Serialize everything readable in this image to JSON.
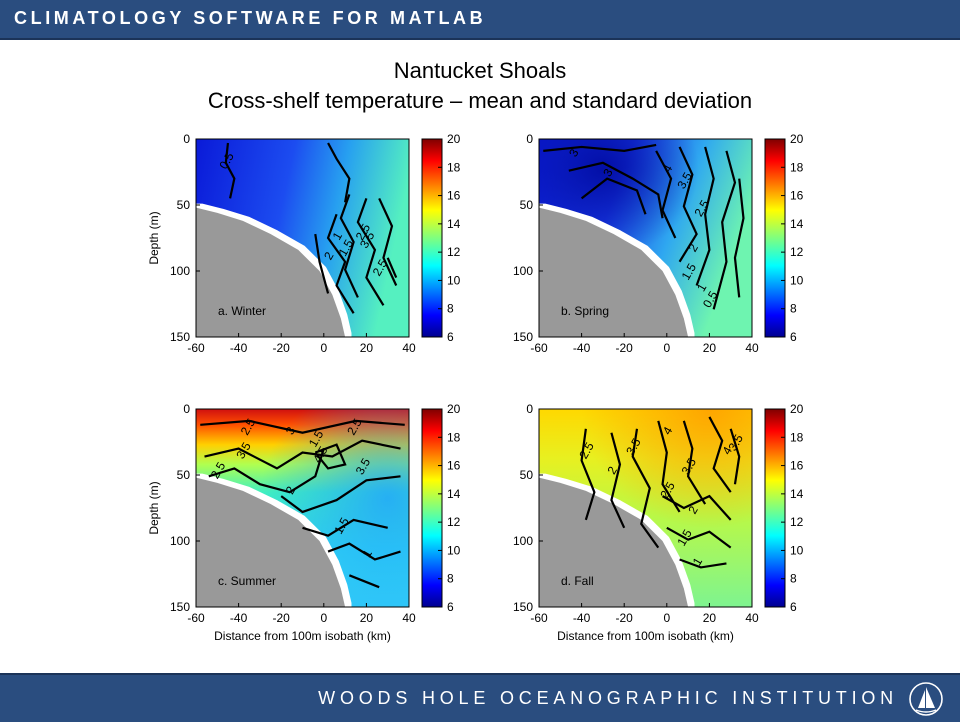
{
  "header": {
    "title": "CLIMATOLOGY SOFTWARE FOR MATLAB"
  },
  "footer": {
    "institution": "WOODS HOLE OCEANOGRAPHIC INSTITUTION",
    "logo_icon": "whoi-sail-logo-icon"
  },
  "slide": {
    "title_line1": "Nantucket Shoals",
    "title_line2": "Cross-shelf temperature – mean and standard deviation"
  },
  "colors": {
    "header_bg": "#2a4d7f",
    "land": "#999999"
  },
  "chart_data": [
    {
      "type": "heatmap",
      "panel": "a",
      "label": "a. Winter",
      "x_ticks": [
        -60,
        -40,
        -20,
        0,
        20,
        40
      ],
      "y_ticks": [
        0,
        50,
        100,
        150
      ],
      "xlim": [
        -60,
        40
      ],
      "ylim": [
        150,
        0
      ],
      "xlabel": "",
      "ylabel": "Depth (m)",
      "colorbar": {
        "ticks": [
          20,
          18,
          16,
          14,
          12,
          10,
          8,
          6
        ],
        "range": [
          6,
          20
        ]
      },
      "contour_labels": [
        "0.5",
        "1",
        "1.5",
        "2",
        "2.5",
        "3.5",
        "2.5"
      ]
    },
    {
      "type": "heatmap",
      "panel": "b",
      "label": "b. Spring",
      "x_ticks": [
        -60,
        -40,
        -20,
        0,
        20,
        40
      ],
      "y_ticks": [
        0,
        50,
        100,
        150
      ],
      "xlim": [
        -60,
        40
      ],
      "ylim": [
        150,
        0
      ],
      "xlabel": "",
      "ylabel": "",
      "colorbar": {
        "ticks": [
          20,
          18,
          16,
          14,
          12,
          10,
          8,
          6
        ],
        "range": [
          6,
          20
        ]
      },
      "contour_labels": [
        "3",
        "4",
        "3.5",
        "3",
        "2.5",
        "2",
        "1.5",
        "1",
        "0.5"
      ]
    },
    {
      "type": "heatmap",
      "panel": "c",
      "label": "c. Summer",
      "x_ticks": [
        -60,
        -40,
        -20,
        0,
        20,
        40
      ],
      "y_ticks": [
        0,
        50,
        100,
        150
      ],
      "xlim": [
        -60,
        40
      ],
      "ylim": [
        150,
        0
      ],
      "xlabel": "Distance from 100m isobath (km)",
      "ylabel": "Depth (m)",
      "colorbar": {
        "ticks": [
          20,
          18,
          16,
          14,
          12,
          10,
          8,
          6
        ],
        "range": [
          6,
          20
        ]
      },
      "contour_labels": [
        "2.5",
        "3",
        "2.5",
        "3.5",
        "4.5",
        "1.5",
        "3.5",
        "2.5",
        "2",
        "1.5",
        "1"
      ]
    },
    {
      "type": "heatmap",
      "panel": "d",
      "label": "d. Fall",
      "x_ticks": [
        -60,
        -40,
        -20,
        0,
        20,
        40
      ],
      "y_ticks": [
        0,
        50,
        100,
        150
      ],
      "xlim": [
        -60,
        40
      ],
      "ylim": [
        150,
        0
      ],
      "xlabel": "Distance from 100m isobath (km)",
      "ylabel": "",
      "colorbar": {
        "ticks": [
          20,
          18,
          16,
          14,
          12,
          10,
          8,
          6
        ],
        "range": [
          6,
          20
        ]
      },
      "contour_labels": [
        "2.5",
        "2",
        "3.5",
        "4",
        "3.5",
        "4",
        "3.5",
        "2.5",
        "2",
        "1.5",
        "1"
      ]
    }
  ]
}
